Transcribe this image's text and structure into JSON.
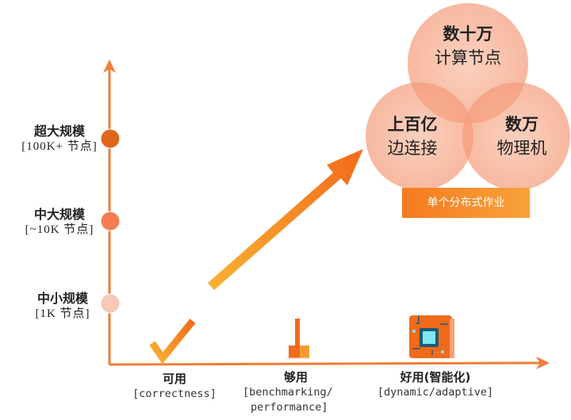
{
  "y_axis_levels": [
    {
      "title": "超大规模",
      "sub": "[100K+ 节点]",
      "color": "#e0661a"
    },
    {
      "title": "中大规模",
      "sub": "[~10K 节点]",
      "color": "#f47d52"
    },
    {
      "title": "中小规模",
      "sub": "[1K 节点]",
      "color": "#f8c7b6"
    }
  ],
  "x_axis_levels": [
    {
      "title": "可用",
      "sub": "[correctness]",
      "icon": "checkmark-icon"
    },
    {
      "title": "够用",
      "sub": "[benchmarking/",
      "sub2": "performance]",
      "icon": "bar-chart-icon"
    },
    {
      "title": "好用(智能化)",
      "sub": "[dynamic/adaptive]",
      "icon": "chip-icon"
    }
  ],
  "venn": {
    "top": {
      "line1": "数十万",
      "line2": "计算节点"
    },
    "left": {
      "line1": "上百亿",
      "line2": "边连接"
    },
    "right": {
      "line1": "数万",
      "line2": "物理机"
    },
    "banner": "单个分布式作业"
  },
  "colors": {
    "axis": "#ef7d3a",
    "accent": "#f57a1e",
    "circle": "#f6b396"
  }
}
